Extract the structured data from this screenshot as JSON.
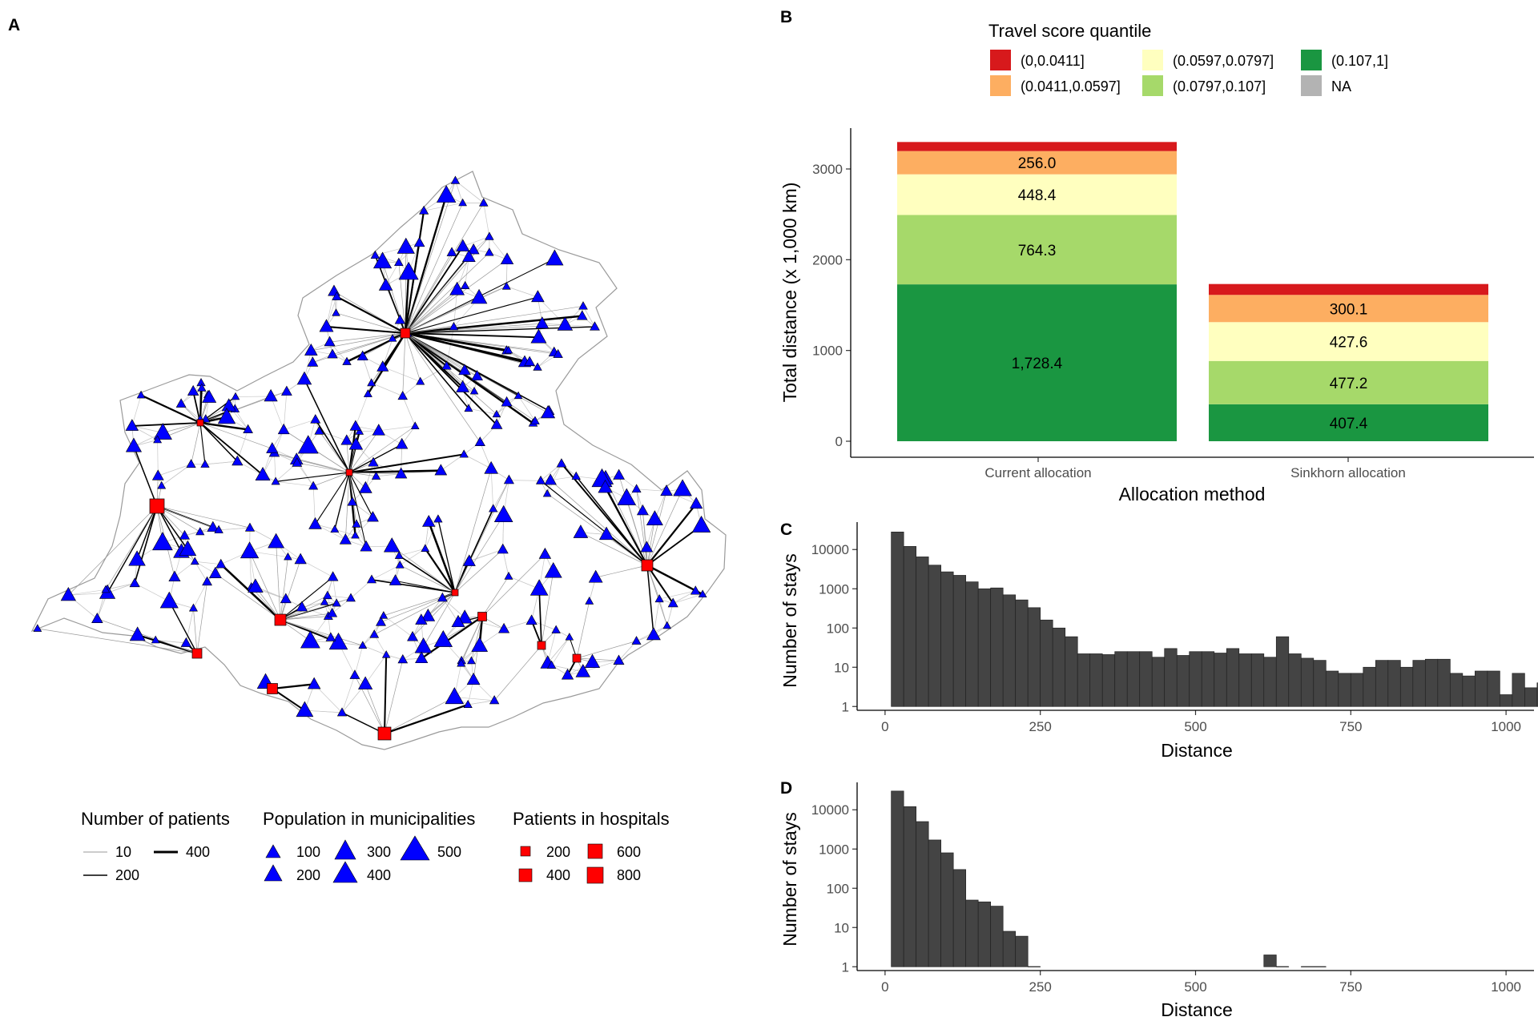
{
  "panels": {
    "a": "A",
    "b": "B",
    "c": "C",
    "d": "D"
  },
  "map_legend": {
    "patients_title": "Number of patients",
    "patients_items": [
      "10",
      "200",
      "400"
    ],
    "population_title": "Population in municipalities",
    "population_items": [
      "100",
      "200",
      "300",
      "400",
      "500"
    ],
    "hospitals_title": "Patients in hospitals",
    "hospitals_items": [
      "200",
      "400",
      "600",
      "800"
    ],
    "colors": {
      "municipality": "#0000ff",
      "hospital": "#ff0000",
      "link_major": "#000000",
      "link_minor": "#9a9a9a",
      "borders": "#b8b8b8"
    }
  },
  "chart_data": [
    {
      "type": "bar",
      "stacked": true,
      "legend": {
        "title": "Travel score quantile",
        "items": [
          {
            "label": "(0,0.0411]",
            "color": "#d7191c"
          },
          {
            "label": "(0.0411,0.0597]",
            "color": "#fdae61"
          },
          {
            "label": "(0.0597,0.0797]",
            "color": "#ffffbf"
          },
          {
            "label": "(0.0797,0.107]",
            "color": "#a6d96a"
          },
          {
            "label": "(0.107,1]",
            "color": "#1a9641"
          },
          {
            "label": "NA",
            "color": "#b3b3b3"
          }
        ]
      },
      "categories": [
        "Current allocation",
        "Sinkhorn allocation"
      ],
      "series": [
        {
          "name": "(0.107,1]",
          "color": "#1a9641",
          "values": [
            1728.4,
            407.4
          ]
        },
        {
          "name": "(0.0797,0.107]",
          "color": "#a6d96a",
          "values": [
            764.3,
            477.2
          ]
        },
        {
          "name": "(0.0597,0.0797]",
          "color": "#ffffbf",
          "values": [
            448.4,
            427.6
          ]
        },
        {
          "name": "(0.0411,0.0597]",
          "color": "#fdae61",
          "values": [
            256.0,
            300.1
          ]
        },
        {
          "name": "(0,0.0411]",
          "color": "#d7191c",
          "values": [
            100,
            120
          ]
        }
      ],
      "bar_labels": [
        [
          "1,728.4",
          "764.3",
          "448.4",
          "256.0"
        ],
        [
          "407.4",
          "477.2",
          "427.6",
          "300.1"
        ]
      ],
      "xlabel": "Allocation method",
      "ylabel": "Total distance (x 1,000 km)",
      "yticks": [
        0,
        1000,
        2000,
        3000
      ],
      "ylim": [
        0,
        3450
      ]
    },
    {
      "type": "histogram",
      "xlabel": "Distance",
      "ylabel": "Number of stays",
      "yscale": "log",
      "xlim": [
        -45,
        1045
      ],
      "ylim": [
        0.8,
        50000
      ],
      "xticks": [
        0,
        250,
        500,
        750,
        1000
      ],
      "yticks": [
        1,
        10,
        100,
        1000,
        10000
      ],
      "ytick_labels": [
        "1",
        "10",
        "100",
        "1000",
        "10000"
      ],
      "bin_width": 20,
      "bin_start": 10,
      "counts": [
        28000,
        12000,
        6500,
        4000,
        2700,
        2200,
        1500,
        1000,
        1050,
        700,
        520,
        330,
        160,
        100,
        60,
        22,
        22,
        21,
        25,
        25,
        25,
        18,
        30,
        20,
        25,
        25,
        23,
        30,
        22,
        22,
        18,
        60,
        22,
        17,
        15,
        8,
        7,
        7,
        10,
        15,
        15,
        10,
        15,
        16,
        16,
        7,
        6,
        8,
        8,
        2,
        7,
        3,
        4,
        1
      ]
    },
    {
      "type": "histogram",
      "xlabel": "Distance",
      "ylabel": "Number of stays",
      "yscale": "log",
      "xlim": [
        -45,
        1045
      ],
      "ylim": [
        0.8,
        50000
      ],
      "xticks": [
        0,
        250,
        500,
        750,
        1000
      ],
      "yticks": [
        1,
        10,
        100,
        1000,
        10000
      ],
      "ytick_labels": [
        "1",
        "10",
        "100",
        "1000",
        "10000"
      ],
      "bin_width": 20,
      "bin_start": 10,
      "counts": [
        30000,
        12000,
        5000,
        1700,
        800,
        300,
        50,
        45,
        35,
        8,
        6,
        1,
        0,
        0,
        0,
        0,
        0,
        0,
        0,
        0,
        0,
        0,
        0,
        0,
        0,
        0,
        0,
        0,
        0,
        0,
        2,
        1,
        0,
        1,
        1
      ]
    }
  ]
}
